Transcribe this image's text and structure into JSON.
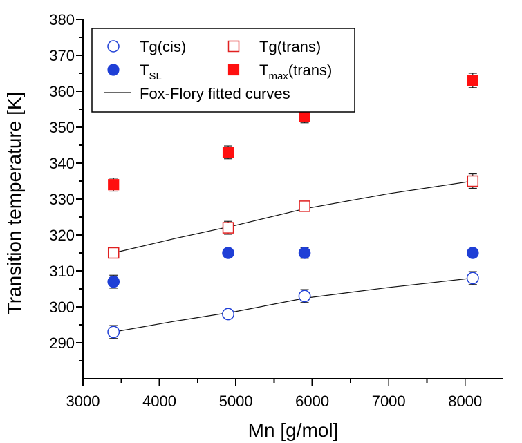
{
  "chart_data": {
    "type": "scatter",
    "xlabel": "Mn [g/mol]",
    "ylabel": "Transition temperature [K]",
    "xlim": [
      3000,
      8500
    ],
    "ylim": [
      280,
      380
    ],
    "x_ticks": [
      3000,
      4000,
      5000,
      6000,
      7000,
      8000
    ],
    "y_ticks": [
      290,
      300,
      310,
      320,
      330,
      340,
      350,
      360,
      370,
      380
    ],
    "series": [
      {
        "name": "Tg(cis)",
        "marker": "open-circle",
        "color": "#1f3fd6",
        "x": [
          3400,
          4900,
          5900,
          8100
        ],
        "y": [
          293,
          298,
          303,
          308
        ],
        "yerr": [
          1.8,
          1.0,
          1.8,
          1.8
        ]
      },
      {
        "name": "Tg(trans)",
        "marker": "open-square",
        "color": "#e02020",
        "x": [
          3400,
          4900,
          5900,
          8100
        ],
        "y": [
          315,
          322,
          328,
          335
        ],
        "yerr": [
          1.2,
          1.8,
          1.2,
          2.0
        ]
      },
      {
        "name": "T",
        "name_sub": "SL",
        "marker": "filled-circle",
        "color": "#1f3fd6",
        "x": [
          3400,
          4900,
          5900,
          8100
        ],
        "y": [
          307,
          315,
          315,
          315
        ],
        "yerr": [
          1.8,
          1.0,
          1.5,
          1.0
        ]
      },
      {
        "name": "T",
        "name_sub": "max",
        "name_suffix": "(trans)",
        "marker": "filled-square",
        "color": "#ff1010",
        "x": [
          3400,
          4900,
          5900,
          8100
        ],
        "y": [
          334,
          343,
          353,
          363
        ],
        "yerr": [
          1.8,
          1.8,
          1.8,
          2.0
        ]
      }
    ],
    "fit_label": "Fox-Flory fitted curves",
    "fitted_curves": [
      {
        "for": "Tg(cis)",
        "x": [
          3400,
          4200,
          5000,
          5900,
          7000,
          8100
        ],
        "y": [
          293.0,
          296.0,
          298.7,
          302.4,
          305.4,
          308.0
        ]
      },
      {
        "for": "Tg(trans)",
        "x": [
          3400,
          4200,
          5000,
          5900,
          7000,
          8100
        ],
        "y": [
          315.0,
          319.0,
          322.7,
          327.3,
          331.5,
          335.0
        ]
      }
    ],
    "legend_position": "top-left"
  }
}
